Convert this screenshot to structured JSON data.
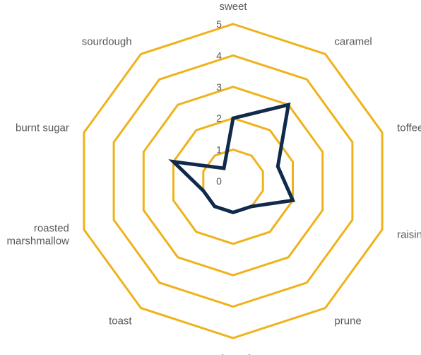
{
  "chart_data": {
    "type": "radar",
    "title": "",
    "categories": [
      "sweet",
      "caramel",
      "toffee",
      "raisin",
      "prune",
      "almond",
      "toast",
      "roasted marshmallow",
      "burnt sugar",
      "sourdough"
    ],
    "series": [
      {
        "values": [
          2,
          3,
          1.5,
          2,
          1,
          1,
          1,
          1,
          2,
          0.5
        ]
      }
    ],
    "radial_ticks": [
      "0",
      "1",
      "2",
      "3",
      "4",
      "5"
    ],
    "rmin": 0,
    "rmax": 5,
    "grid": true,
    "legend": "none",
    "colors": {
      "ring": "#F0B21B",
      "series": "#0F2A4A",
      "label": "#595959"
    }
  }
}
